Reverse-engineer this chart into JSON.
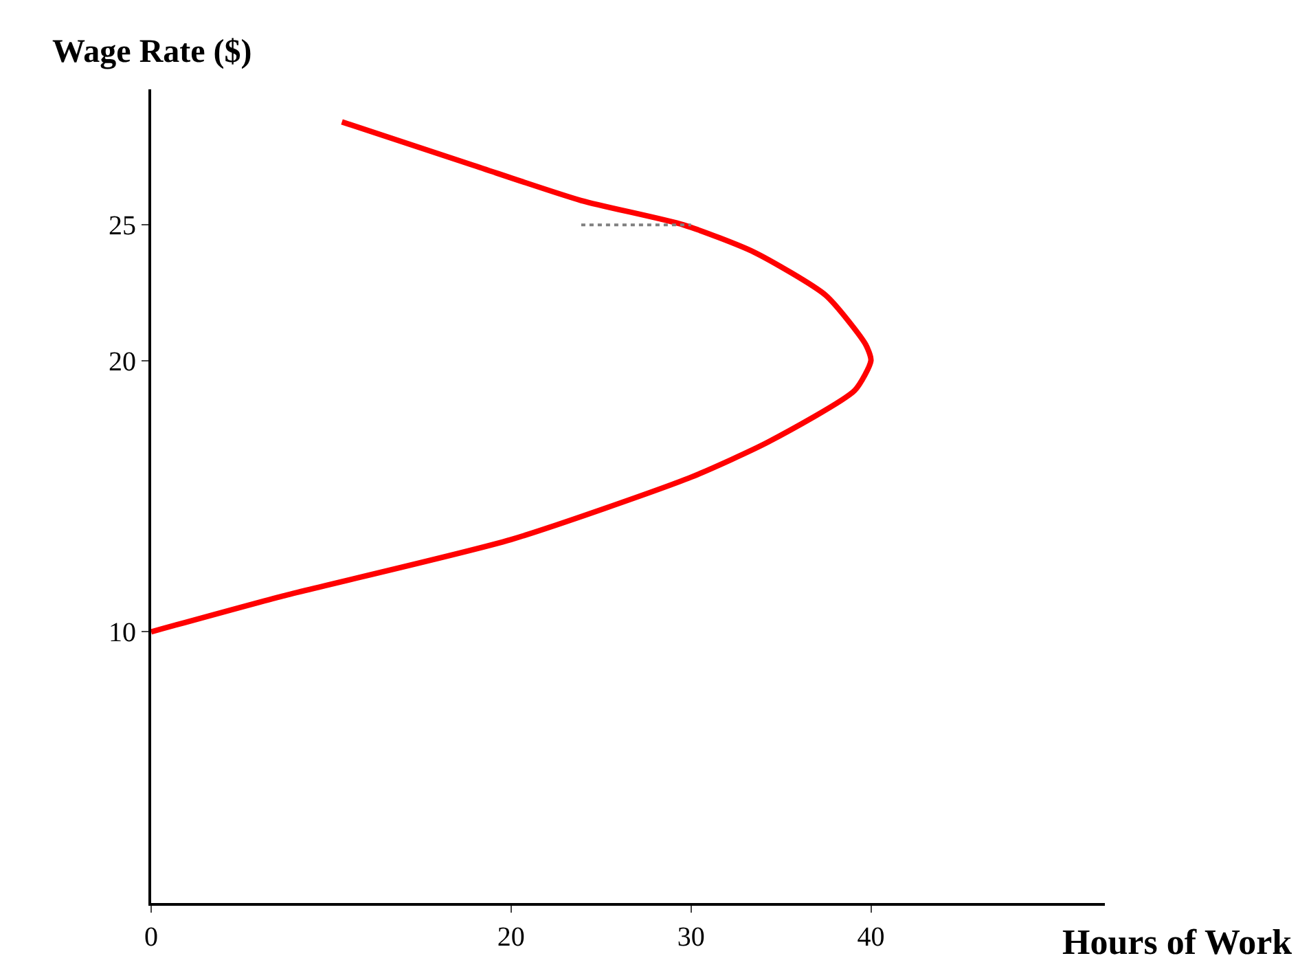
{
  "chart_data": {
    "type": "line",
    "xlabel": "Hours of Work",
    "ylabel": "Wage Rate ($)",
    "xlim": [
      0,
      53
    ],
    "ylim": [
      0,
      30
    ],
    "xticks": [
      0,
      20,
      30,
      40
    ],
    "yticks": [
      10,
      20,
      25
    ],
    "marker": "none",
    "series": [
      {
        "color": "#ff0000",
        "line_style": "solid",
        "x": [
          10.6,
          17.9,
          23.9,
          29.6,
          33.5,
          37.5,
          39.7,
          40,
          39.1,
          34.3,
          30,
          20,
          7.2,
          0
        ],
        "values": [
          28.8,
          27.2,
          25.9,
          25,
          24,
          22.4,
          20.6,
          20,
          18.9,
          17,
          15.7,
          13.4,
          11.3,
          10
        ]
      },
      {
        "color": "#808080",
        "line_style": "dotted",
        "x": [
          23.9,
          30
        ],
        "values": [
          25,
          25
        ]
      }
    ]
  }
}
